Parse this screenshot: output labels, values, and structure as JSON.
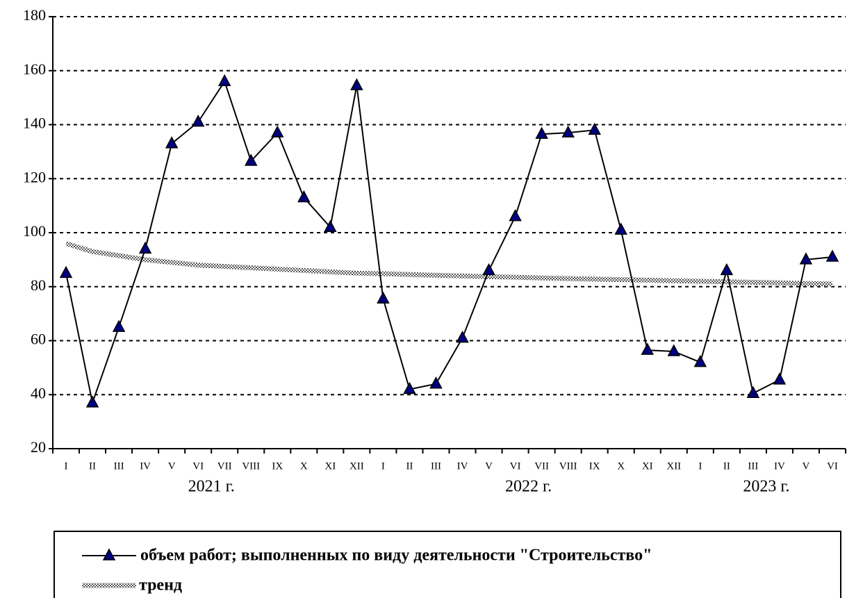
{
  "chart_data": {
    "type": "line",
    "categories": [
      "I",
      "II",
      "III",
      "IV",
      "V",
      "VI",
      "VII",
      "VIII",
      "IX",
      "X",
      "XI",
      "XII",
      "I",
      "II",
      "III",
      "IV",
      "V",
      "VI",
      "VII",
      "VIII",
      "IX",
      "X",
      "XI",
      "XII",
      "I",
      "II",
      "III",
      "IV",
      "V",
      "VI"
    ],
    "x_groups": [
      "2021 г.",
      "2022 г.",
      "2023 г."
    ],
    "series": [
      {
        "name": "объем работ; выполненных по виду деятельности \"Строительство\"",
        "color": "#000080",
        "values": [
          85,
          37,
          65,
          94,
          133,
          141,
          156,
          126.5,
          137,
          113,
          102,
          154.5,
          75.5,
          42,
          44,
          61,
          86,
          106,
          136.5,
          137,
          138,
          101,
          56.5,
          56,
          52,
          86,
          40.5,
          45.5,
          90,
          91
        ]
      },
      {
        "name": "тренд",
        "color": "#a8a8a8",
        "values": [
          96,
          93,
          91.5,
          90,
          89,
          88,
          87.5,
          87,
          86.5,
          86,
          85.5,
          85,
          84.8,
          84.5,
          84.2,
          84,
          83.7,
          83.5,
          83.2,
          83,
          82.8,
          82.6,
          82.4,
          82.2,
          82,
          81.8,
          81.6,
          81.4,
          81.2,
          81
        ]
      }
    ],
    "ylim": [
      20,
      180
    ],
    "yticks": [
      20,
      40,
      60,
      80,
      100,
      120,
      140,
      160,
      180
    ],
    "grid": true
  }
}
